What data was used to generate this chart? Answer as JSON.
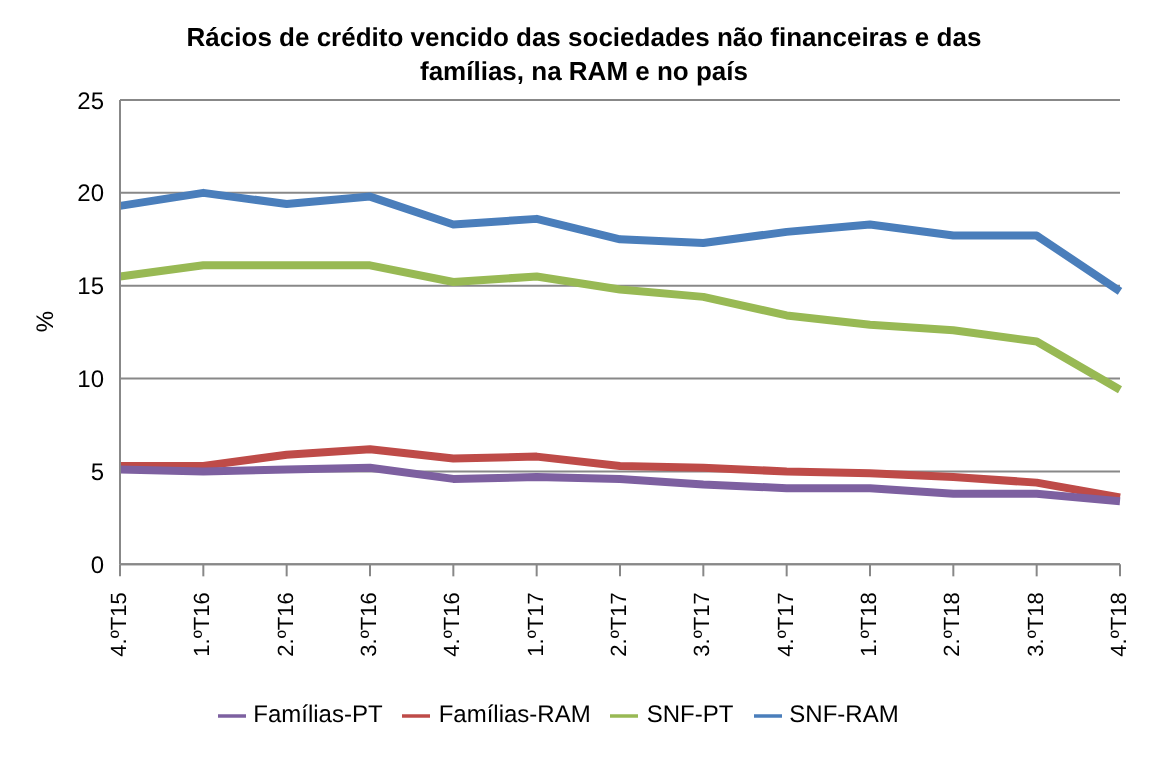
{
  "chart_data": {
    "type": "line",
    "title": "Rácios de crédito vencido das sociedades não financeiras e das famílias, na RAM e no país",
    "ylabel": "%",
    "categories": [
      "4.ºT15",
      "1.ºT16",
      "2.ºT16",
      "3.ºT16",
      "4.ºT16",
      "1.ºT17",
      "2.ºT17",
      "3.ºT17",
      "4.ºT17",
      "1.ºT18",
      "2.ºT18",
      "3.ºT18",
      "4.ºT18"
    ],
    "series": [
      {
        "name": "SNF-RAM",
        "color": "#4a7ebb",
        "values": [
          19.3,
          20.0,
          19.4,
          19.8,
          18.3,
          18.6,
          17.5,
          17.3,
          17.9,
          18.3,
          17.7,
          17.7,
          14.7
        ]
      },
      {
        "name": "Famílias-RAM",
        "color": "#be4b48",
        "values": [
          5.3,
          5.3,
          5.9,
          6.2,
          5.7,
          5.8,
          5.3,
          5.2,
          5.0,
          4.9,
          4.7,
          4.4,
          3.6
        ]
      },
      {
        "name": "SNF-PT",
        "color": "#98b954",
        "values": [
          15.5,
          16.1,
          16.1,
          16.1,
          15.2,
          15.5,
          14.8,
          14.4,
          13.4,
          12.9,
          12.6,
          12.0,
          9.4
        ]
      },
      {
        "name": "Famílias-PT",
        "color": "#7d60a0",
        "values": [
          5.1,
          5.0,
          5.1,
          5.2,
          4.6,
          4.7,
          4.6,
          4.3,
          4.1,
          4.1,
          3.8,
          3.8,
          3.4
        ]
      }
    ],
    "ylim": [
      0,
      25
    ],
    "yticks": [
      0,
      5,
      10,
      15,
      20,
      25
    ],
    "grid": "y",
    "legend": "bottom",
    "marker": "none",
    "line_style": "solid"
  }
}
